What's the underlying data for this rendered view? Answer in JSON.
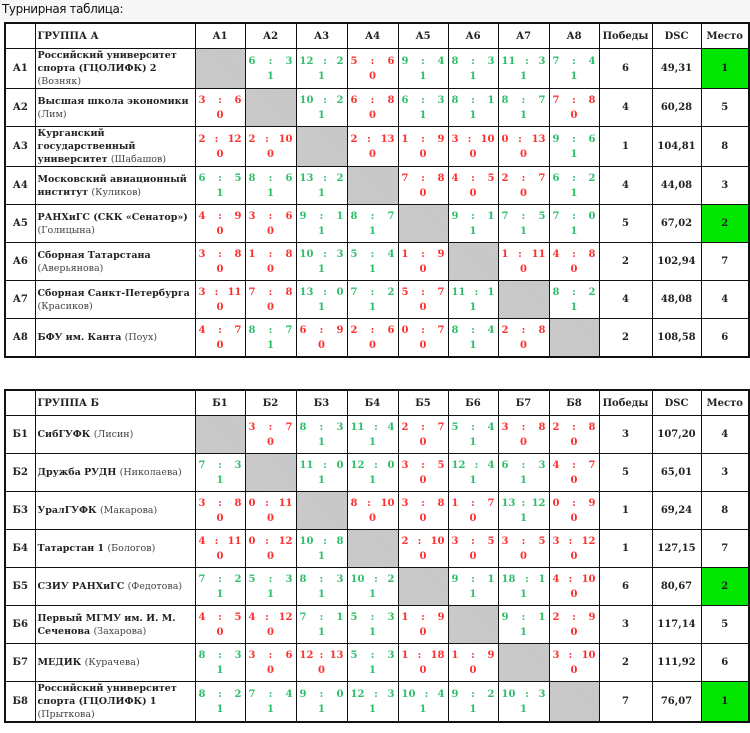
{
  "title": "Турнирная таблица:",
  "colors": {
    "win": "#2fbf6a",
    "loss": "#ff3030",
    "highlight_place": "#00e600",
    "empty_cell": "#c8c8c8"
  },
  "groups": [
    {
      "header": "ГРУППА А",
      "columns": [
        "А1",
        "А2",
        "А3",
        "А4",
        "А5",
        "А6",
        "А7",
        "А8"
      ],
      "wins_label": "Победы",
      "dsc_label": "DSC",
      "place_label": "Место",
      "rows": [
        {
          "code": "А1",
          "name": "Российский университет спорта (ГЦОЛИФК) 2",
          "coach": "(Возняк)",
          "cells": [
            null,
            {
              "a": "6",
              "b": "3",
              "pts": "1"
            },
            {
              "a": "12",
              "b": "2",
              "pts": "1"
            },
            {
              "a": "5",
              "b": "6",
              "pts": "0"
            },
            {
              "a": "9",
              "b": "4",
              "pts": "1"
            },
            {
              "a": "8",
              "b": "3",
              "pts": "1"
            },
            {
              "a": "11",
              "b": "3",
              "pts": "1"
            },
            {
              "a": "7",
              "b": "4",
              "pts": "1"
            }
          ],
          "wins": "6",
          "dsc": "49,31",
          "place": "1",
          "highlight": true
        },
        {
          "code": "А2",
          "name": "Высшая школа экономики",
          "coach": "(Лим)",
          "cells": [
            {
              "a": "3",
              "b": "6",
              "pts": "0"
            },
            null,
            {
              "a": "10",
              "b": "2",
              "pts": "1"
            },
            {
              "a": "6",
              "b": "8",
              "pts": "0"
            },
            {
              "a": "6",
              "b": "3",
              "pts": "1"
            },
            {
              "a": "8",
              "b": "1",
              "pts": "1"
            },
            {
              "a": "8",
              "b": "7",
              "pts": "1"
            },
            {
              "a": "7",
              "b": "8",
              "pts": "0"
            }
          ],
          "wins": "4",
          "dsc": "60,28",
          "place": "5"
        },
        {
          "code": "А3",
          "name": "Курганский государственный университет",
          "coach": "(Шабашов)",
          "cells": [
            {
              "a": "2",
              "b": "12",
              "pts": "0"
            },
            {
              "a": "2",
              "b": "10",
              "pts": "0"
            },
            null,
            {
              "a": "2",
              "b": "13",
              "pts": "0"
            },
            {
              "a": "1",
              "b": "9",
              "pts": "0"
            },
            {
              "a": "3",
              "b": "10",
              "pts": "0"
            },
            {
              "a": "0",
              "b": "13",
              "pts": "0"
            },
            {
              "a": "9",
              "b": "6",
              "pts": "1"
            }
          ],
          "wins": "1",
          "dsc": "104,81",
          "place": "8"
        },
        {
          "code": "А4",
          "name": "Московский авиационный институт",
          "coach": "(Куликов)",
          "cells": [
            {
              "a": "6",
              "b": "5",
              "pts": "1"
            },
            {
              "a": "8",
              "b": "6",
              "pts": "1"
            },
            {
              "a": "13",
              "b": "2",
              "pts": "1"
            },
            null,
            {
              "a": "7",
              "b": "8",
              "pts": "0"
            },
            {
              "a": "4",
              "b": "5",
              "pts": "0"
            },
            {
              "a": "2",
              "b": "7",
              "pts": "0"
            },
            {
              "a": "6",
              "b": "2",
              "pts": "1"
            }
          ],
          "wins": "4",
          "dsc": "44,08",
          "place": "3"
        },
        {
          "code": "А5",
          "name": "РАНХиГС (СКК «Сенатор»)",
          "coach": "(Голицына)",
          "cells": [
            {
              "a": "4",
              "b": "9",
              "pts": "0"
            },
            {
              "a": "3",
              "b": "6",
              "pts": "0"
            },
            {
              "a": "9",
              "b": "1",
              "pts": "1"
            },
            {
              "a": "8",
              "b": "7",
              "pts": "1"
            },
            null,
            {
              "a": "9",
              "b": "1",
              "pts": "1"
            },
            {
              "a": "7",
              "b": "5",
              "pts": "1"
            },
            {
              "a": "7",
              "b": "0",
              "pts": "1"
            }
          ],
          "wins": "5",
          "dsc": "67,02",
          "place": "2",
          "highlight": true
        },
        {
          "code": "А6",
          "name": "Сборная Татарстана",
          "coach": "(Аверьянова)",
          "cells": [
            {
              "a": "3",
              "b": "8",
              "pts": "0"
            },
            {
              "a": "1",
              "b": "8",
              "pts": "0"
            },
            {
              "a": "10",
              "b": "3",
              "pts": "1"
            },
            {
              "a": "5",
              "b": "4",
              "pts": "1"
            },
            {
              "a": "1",
              "b": "9",
              "pts": "0"
            },
            null,
            {
              "a": "1",
              "b": "11",
              "pts": "0"
            },
            {
              "a": "4",
              "b": "8",
              "pts": "0"
            }
          ],
          "wins": "2",
          "dsc": "102,94",
          "place": "7"
        },
        {
          "code": "А7",
          "name": "Сборная Санкт-Петербурга",
          "coach": "(Красиков)",
          "cells": [
            {
              "a": "3",
              "b": "11",
              "pts": "0"
            },
            {
              "a": "7",
              "b": "8",
              "pts": "0"
            },
            {
              "a": "13",
              "b": "0",
              "pts": "1"
            },
            {
              "a": "7",
              "b": "2",
              "pts": "1"
            },
            {
              "a": "5",
              "b": "7",
              "pts": "0"
            },
            {
              "a": "11",
              "b": "1",
              "pts": "1"
            },
            null,
            {
              "a": "8",
              "b": "2",
              "pts": "1"
            }
          ],
          "wins": "4",
          "dsc": "48,08",
          "place": "4"
        },
        {
          "code": "А8",
          "name": "БФУ им. Канта",
          "coach": "(Поух)",
          "cells": [
            {
              "a": "4",
              "b": "7",
              "pts": "0"
            },
            {
              "a": "8",
              "b": "7",
              "pts": "1"
            },
            {
              "a": "6",
              "b": "9",
              "pts": "0"
            },
            {
              "a": "2",
              "b": "6",
              "pts": "0"
            },
            {
              "a": "0",
              "b": "7",
              "pts": "0"
            },
            {
              "a": "8",
              "b": "4",
              "pts": "1"
            },
            {
              "a": "2",
              "b": "8",
              "pts": "0"
            },
            null
          ],
          "wins": "2",
          "dsc": "108,58",
          "place": "6"
        }
      ]
    },
    {
      "header": "ГРУППА Б",
      "columns": [
        "Б1",
        "Б2",
        "Б3",
        "Б4",
        "Б5",
        "Б6",
        "Б7",
        "Б8"
      ],
      "wins_label": "Победы",
      "dsc_label": "DSC",
      "place_label": "Место",
      "rows": [
        {
          "code": "Б1",
          "name": "СибГУФК",
          "coach": "(Лисин)",
          "cells": [
            null,
            {
              "a": "3",
              "b": "7",
              "pts": "0"
            },
            {
              "a": "8",
              "b": "3",
              "pts": "1"
            },
            {
              "a": "11",
              "b": "4",
              "pts": "1"
            },
            {
              "a": "2",
              "b": "7",
              "pts": "0"
            },
            {
              "a": "5",
              "b": "4",
              "pts": "1"
            },
            {
              "a": "3",
              "b": "8",
              "pts": "0"
            },
            {
              "a": "2",
              "b": "8",
              "pts": "0"
            }
          ],
          "wins": "3",
          "dsc": "107,20",
          "place": "4"
        },
        {
          "code": "Б2",
          "name": "Дружба РУДН",
          "coach": "(Николаева)",
          "cells": [
            {
              "a": "7",
              "b": "3",
              "pts": "1"
            },
            null,
            {
              "a": "11",
              "b": "0",
              "pts": "1"
            },
            {
              "a": "12",
              "b": "0",
              "pts": "1"
            },
            {
              "a": "3",
              "b": "5",
              "pts": "0"
            },
            {
              "a": "12",
              "b": "4",
              "pts": "1"
            },
            {
              "a": "6",
              "b": "3",
              "pts": "1"
            },
            {
              "a": "4",
              "b": "7",
              "pts": "0"
            }
          ],
          "wins": "5",
          "dsc": "65,01",
          "place": "3"
        },
        {
          "code": "Б3",
          "name": "УралГУФК",
          "coach": "(Макарова)",
          "cells": [
            {
              "a": "3",
              "b": "8",
              "pts": "0"
            },
            {
              "a": "0",
              "b": "11",
              "pts": "0"
            },
            null,
            {
              "a": "8",
              "b": "10",
              "pts": "0"
            },
            {
              "a": "3",
              "b": "8",
              "pts": "0"
            },
            {
              "a": "1",
              "b": "7",
              "pts": "0"
            },
            {
              "a": "13",
              "b": "12",
              "pts": "1"
            },
            {
              "a": "0",
              "b": "9",
              "pts": "0"
            }
          ],
          "wins": "1",
          "dsc": "69,24",
          "place": "8"
        },
        {
          "code": "Б4",
          "name": "Татарстан 1",
          "coach": "(Бологов)",
          "cells": [
            {
              "a": "4",
              "b": "11",
              "pts": "0"
            },
            {
              "a": "0",
              "b": "12",
              "pts": "0"
            },
            {
              "a": "10",
              "b": "8",
              "pts": "1"
            },
            null,
            {
              "a": "2",
              "b": "10",
              "pts": "0"
            },
            {
              "a": "3",
              "b": "5",
              "pts": "0"
            },
            {
              "a": "3",
              "b": "5",
              "pts": "0"
            },
            {
              "a": "3",
              "b": "12",
              "pts": "0"
            }
          ],
          "wins": "1",
          "dsc": "127,15",
          "place": "7"
        },
        {
          "code": "Б5",
          "name": "СЗИУ РАНХиГС",
          "coach": "(Федотова)",
          "cells": [
            {
              "a": "7",
              "b": "2",
              "pts": "1"
            },
            {
              "a": "5",
              "b": "3",
              "pts": "1"
            },
            {
              "a": "8",
              "b": "3",
              "pts": "1"
            },
            {
              "a": "10",
              "b": "2",
              "pts": "1"
            },
            null,
            {
              "a": "9",
              "b": "1",
              "pts": "1"
            },
            {
              "a": "18",
              "b": "1",
              "pts": "1"
            },
            {
              "a": "4",
              "b": "10",
              "pts": "0"
            }
          ],
          "wins": "6",
          "dsc": "80,67",
          "place": "2",
          "highlight": true
        },
        {
          "code": "Б6",
          "name": "Первый МГМУ им. И. М. Сеченова",
          "coach": "(Захарова)",
          "cells": [
            {
              "a": "4",
              "b": "5",
              "pts": "0"
            },
            {
              "a": "4",
              "b": "12",
              "pts": "0"
            },
            {
              "a": "7",
              "b": "1",
              "pts": "1"
            },
            {
              "a": "5",
              "b": "3",
              "pts": "1"
            },
            {
              "a": "1",
              "b": "9",
              "pts": "0"
            },
            null,
            {
              "a": "9",
              "b": "1",
              "pts": "1"
            },
            {
              "a": "2",
              "b": "9",
              "pts": "0"
            }
          ],
          "wins": "3",
          "dsc": "117,14",
          "place": "5"
        },
        {
          "code": "Б7",
          "name": "МЕДИК",
          "coach": "(Курачева)",
          "cells": [
            {
              "a": "8",
              "b": "3",
              "pts": "1"
            },
            {
              "a": "3",
              "b": "6",
              "pts": "0"
            },
            {
              "a": "12",
              "b": "13",
              "pts": "0"
            },
            {
              "a": "5",
              "b": "3",
              "pts": "1"
            },
            {
              "a": "1",
              "b": "18",
              "pts": "0"
            },
            {
              "a": "1",
              "b": "9",
              "pts": "0"
            },
            null,
            {
              "a": "3",
              "b": "10",
              "pts": "0"
            }
          ],
          "wins": "2",
          "dsc": "111,92",
          "place": "6"
        },
        {
          "code": "Б8",
          "name": "Российский университет спорта (ГЦОЛИФК) 1",
          "coach": "(Прыткова)",
          "cells": [
            {
              "a": "8",
              "b": "2",
              "pts": "1"
            },
            {
              "a": "7",
              "b": "4",
              "pts": "1"
            },
            {
              "a": "9",
              "b": "0",
              "pts": "1"
            },
            {
              "a": "12",
              "b": "3",
              "pts": "1"
            },
            {
              "a": "10",
              "b": "4",
              "pts": "1"
            },
            {
              "a": "9",
              "b": "2",
              "pts": "1"
            },
            {
              "a": "10",
              "b": "3",
              "pts": "1"
            },
            null
          ],
          "wins": "7",
          "dsc": "76,07",
          "place": "1",
          "highlight": true
        }
      ]
    }
  ]
}
